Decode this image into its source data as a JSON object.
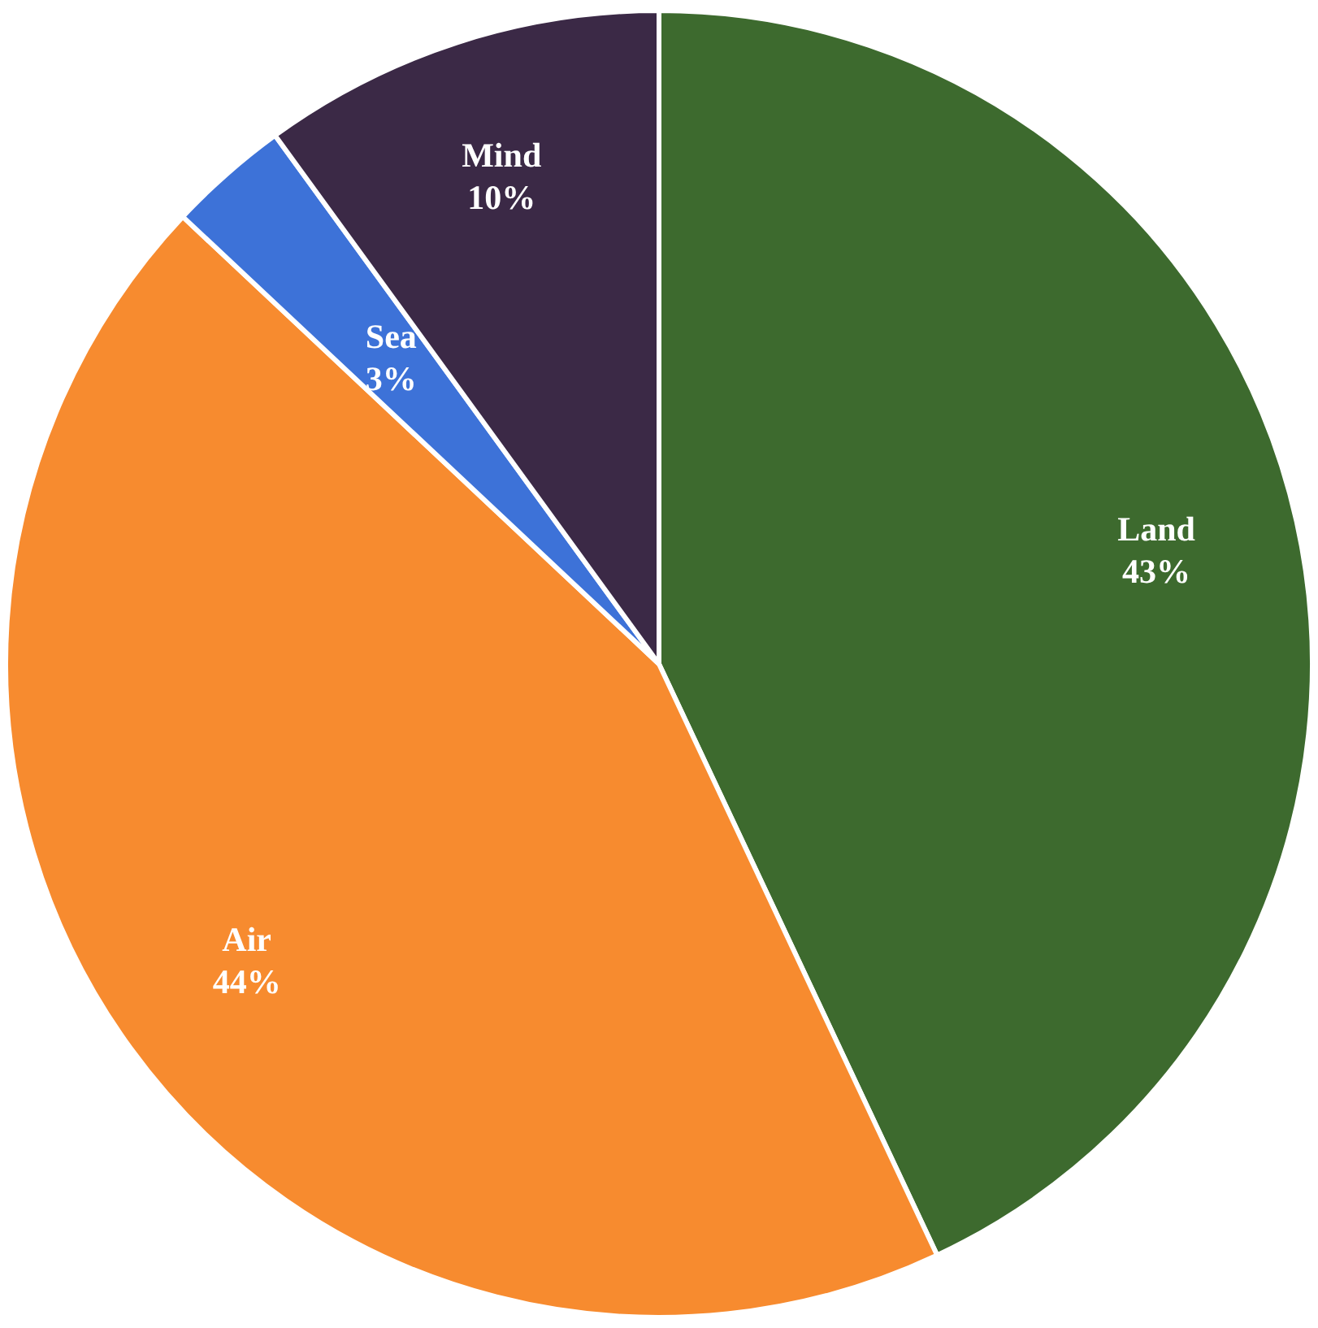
{
  "chart_data": {
    "type": "pie",
    "categories": [
      "Land",
      "Air",
      "Sea",
      "Mind"
    ],
    "values": [
      43,
      44,
      3,
      10
    ],
    "colors": [
      "#3d6a2e",
      "#f78b2f",
      "#3d72d8",
      "#3b2946"
    ],
    "value_labels": [
      "43%",
      "44%",
      "3%",
      "10%"
    ],
    "legend": false
  }
}
